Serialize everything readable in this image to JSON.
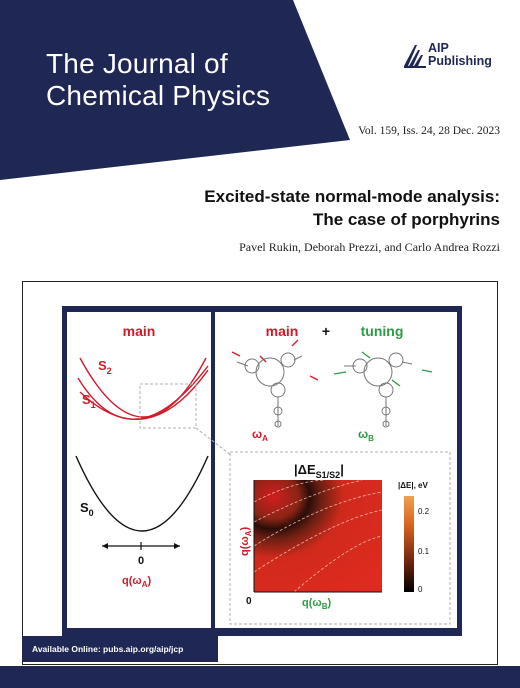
{
  "colors": {
    "navy": "#1f2755",
    "red": "#d11a2a",
    "green": "#2f9a45",
    "panel_gray": "#ffffff"
  },
  "journal": {
    "title_line1": "The Journal of",
    "title_line2": "Chemical Physics"
  },
  "publisher": {
    "name_line1": "AIP",
    "name_line2": "Publishing",
    "logo_icon": "aip-book-icon"
  },
  "issue": "Vol. 159, Iss. 24, 28 Dec. 2023",
  "article": {
    "title_line1": "Excited-state normal-mode analysis:",
    "title_line2": "The case of porphyrins",
    "authors": "Pavel Rukin, Deborah Prezzi, and Carlo Andrea Rozzi"
  },
  "figure": {
    "left_panel": {
      "heading": "main",
      "curve_s2": "S",
      "curve_s2_sub": "2",
      "curve_s1": "S",
      "curve_s1_sub": "1",
      "curve_s0": "S",
      "curve_s0_sub": "0",
      "axis_zero": "0",
      "axis_label": "q(ω",
      "axis_label_sub": "A",
      "axis_label_close": ")"
    },
    "right_panel": {
      "heading_main": "main",
      "heading_plus": "+",
      "heading_tuning": "tuning",
      "mode_a": "ω",
      "mode_a_sub": "A",
      "mode_b": "ω",
      "mode_b_sub": "B"
    },
    "heatmap": {
      "title": "|ΔE",
      "title_sub": "S1/S2",
      "title_close": "|",
      "colorbar_label": "|ΔE|, eV",
      "colorbar_ticks": [
        "0.2",
        "0.1",
        "0"
      ],
      "x_label": "q(ω",
      "x_label_sub": "B",
      "x_label_close": ")",
      "y_label": "q(ω",
      "y_label_sub": "A",
      "y_label_close": ")",
      "origin": "0"
    }
  },
  "footer": {
    "availability": "Available Online: pubs.aip.org/aip/jcp"
  }
}
